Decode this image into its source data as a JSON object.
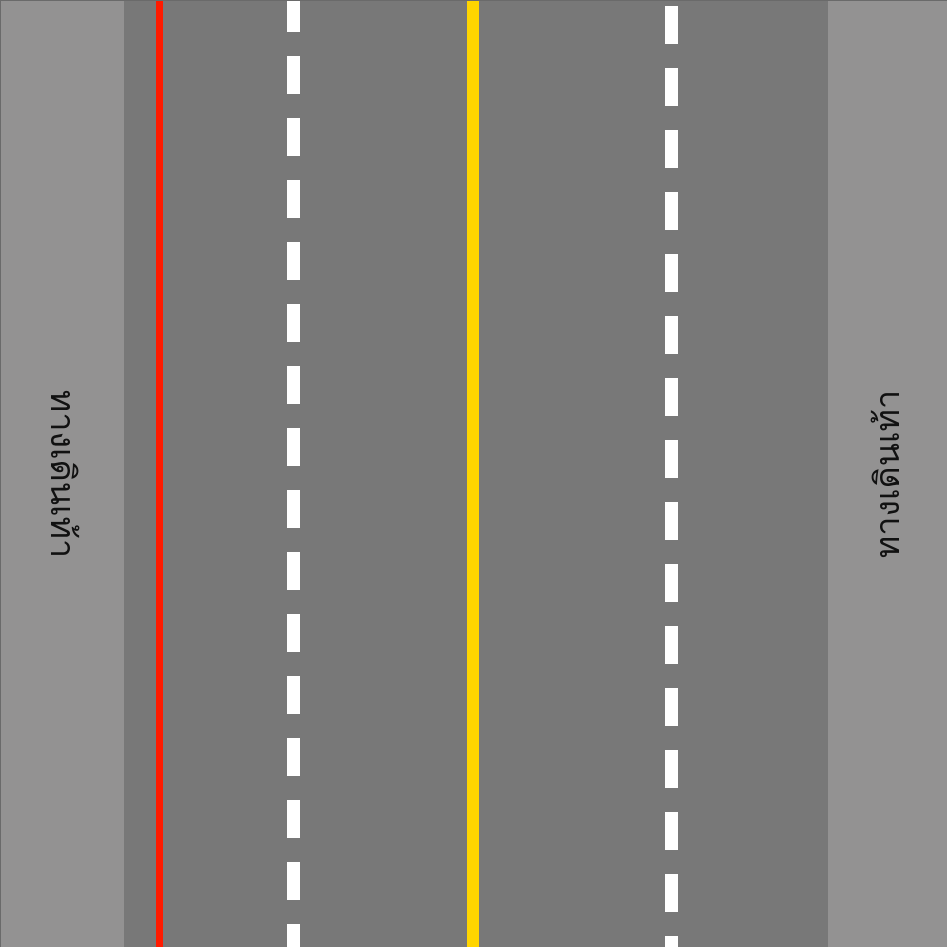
{
  "labels": {
    "left": "ทางเดินเท้า",
    "right": "ทางเดินเท้า"
  },
  "colors": {
    "sidewalk": "#939292",
    "road": "#787878",
    "red_line": "#ff1a00",
    "yellow_line": "#ffd500",
    "white_line": "#ffffff"
  }
}
